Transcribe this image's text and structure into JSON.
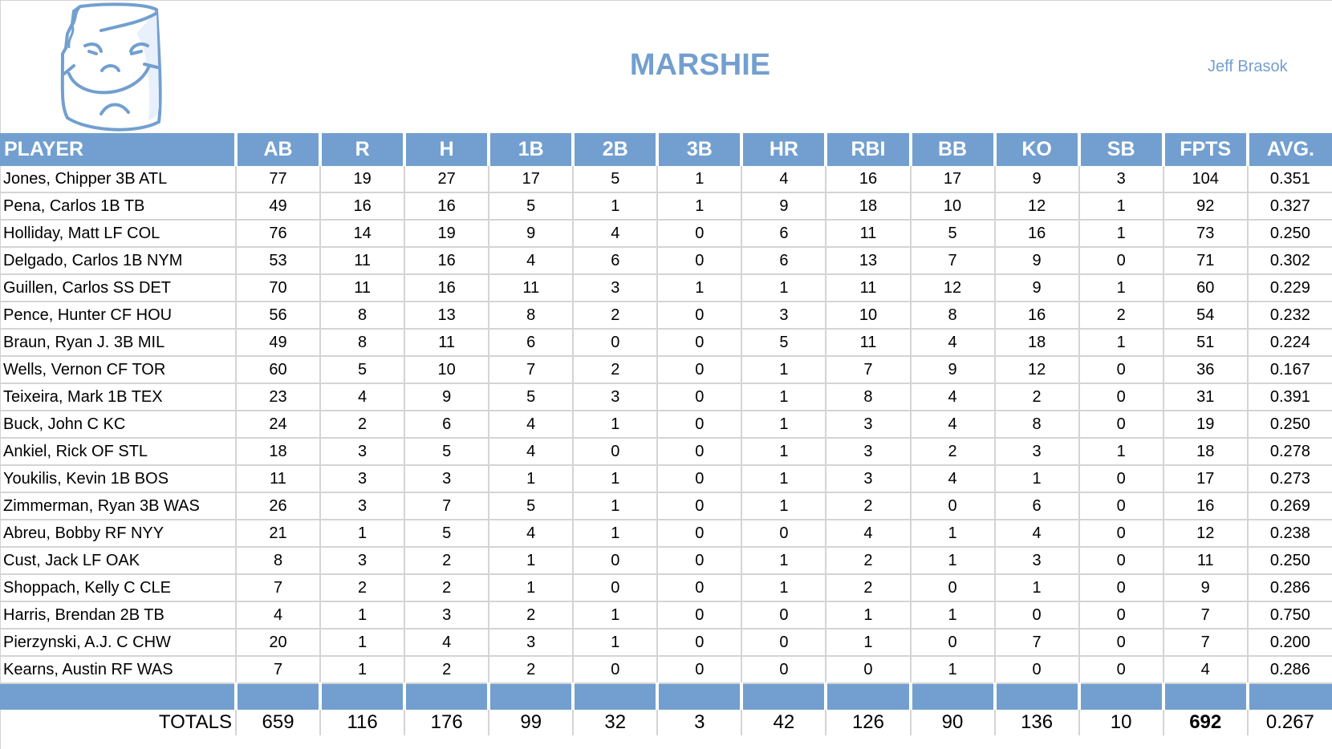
{
  "team_name": "MARSHIE",
  "owner": "Jeff Brasok",
  "logo": "marshmallow-face-logo",
  "colors": {
    "header": "#729fcf",
    "title": "#729fcf",
    "grid": "#d4d4d4"
  },
  "columns": [
    "PLAYER",
    "AB",
    "R",
    "H",
    "1B",
    "2B",
    "3B",
    "HR",
    "RBI",
    "BB",
    "KO",
    "SB",
    "FPTS",
    "AVG."
  ],
  "rows": [
    [
      "Jones, Chipper 3B ATL",
      "77",
      "19",
      "27",
      "17",
      "5",
      "1",
      "4",
      "16",
      "17",
      "9",
      "3",
      "104",
      "0.351"
    ],
    [
      "Pena, Carlos 1B TB",
      "49",
      "16",
      "16",
      "5",
      "1",
      "1",
      "9",
      "18",
      "10",
      "12",
      "1",
      "92",
      "0.327"
    ],
    [
      "Holliday, Matt LF COL",
      "76",
      "14",
      "19",
      "9",
      "4",
      "0",
      "6",
      "11",
      "5",
      "16",
      "1",
      "73",
      "0.250"
    ],
    [
      "Delgado, Carlos 1B NYM",
      "53",
      "11",
      "16",
      "4",
      "6",
      "0",
      "6",
      "13",
      "7",
      "9",
      "0",
      "71",
      "0.302"
    ],
    [
      "Guillen, Carlos SS DET",
      "70",
      "11",
      "16",
      "11",
      "3",
      "1",
      "1",
      "11",
      "12",
      "9",
      "1",
      "60",
      "0.229"
    ],
    [
      "Pence, Hunter CF HOU",
      "56",
      "8",
      "13",
      "8",
      "2",
      "0",
      "3",
      "10",
      "8",
      "16",
      "2",
      "54",
      "0.232"
    ],
    [
      "Braun, Ryan J. 3B MIL",
      "49",
      "8",
      "11",
      "6",
      "0",
      "0",
      "5",
      "11",
      "4",
      "18",
      "1",
      "51",
      "0.224"
    ],
    [
      "Wells, Vernon CF TOR",
      "60",
      "5",
      "10",
      "7",
      "2",
      "0",
      "1",
      "7",
      "9",
      "12",
      "0",
      "36",
      "0.167"
    ],
    [
      "Teixeira, Mark 1B TEX",
      "23",
      "4",
      "9",
      "5",
      "3",
      "0",
      "1",
      "8",
      "4",
      "2",
      "0",
      "31",
      "0.391"
    ],
    [
      "Buck, John C KC",
      "24",
      "2",
      "6",
      "4",
      "1",
      "0",
      "1",
      "3",
      "4",
      "8",
      "0",
      "19",
      "0.250"
    ],
    [
      "Ankiel, Rick OF STL",
      "18",
      "3",
      "5",
      "4",
      "0",
      "0",
      "1",
      "3",
      "2",
      "3",
      "1",
      "18",
      "0.278"
    ],
    [
      "Youkilis, Kevin 1B BOS",
      "11",
      "3",
      "3",
      "1",
      "1",
      "0",
      "1",
      "3",
      "4",
      "1",
      "0",
      "17",
      "0.273"
    ],
    [
      "Zimmerman, Ryan 3B WAS",
      "26",
      "3",
      "7",
      "5",
      "1",
      "0",
      "1",
      "2",
      "0",
      "6",
      "0",
      "16",
      "0.269"
    ],
    [
      "Abreu, Bobby RF NYY",
      "21",
      "1",
      "5",
      "4",
      "1",
      "0",
      "0",
      "4",
      "1",
      "4",
      "0",
      "12",
      "0.238"
    ],
    [
      "Cust, Jack LF OAK",
      "8",
      "3",
      "2",
      "1",
      "0",
      "0",
      "1",
      "2",
      "1",
      "3",
      "0",
      "11",
      "0.250"
    ],
    [
      "Shoppach, Kelly C CLE",
      "7",
      "2",
      "2",
      "1",
      "0",
      "0",
      "1",
      "2",
      "0",
      "1",
      "0",
      "9",
      "0.286"
    ],
    [
      "Harris, Brendan 2B TB",
      "4",
      "1",
      "3",
      "2",
      "1",
      "0",
      "0",
      "1",
      "1",
      "0",
      "0",
      "7",
      "0.750"
    ],
    [
      "Pierzynski, A.J. C CHW",
      "20",
      "1",
      "4",
      "3",
      "1",
      "0",
      "0",
      "1",
      "0",
      "7",
      "0",
      "7",
      "0.200"
    ],
    [
      "Kearns, Austin RF WAS",
      "7",
      "1",
      "2",
      "2",
      "0",
      "0",
      "0",
      "0",
      "1",
      "0",
      "0",
      "4",
      "0.286"
    ]
  ],
  "totals": [
    "TOTALS",
    "659",
    "116",
    "176",
    "99",
    "32",
    "3",
    "42",
    "126",
    "90",
    "136",
    "10",
    "692",
    "0.267"
  ]
}
